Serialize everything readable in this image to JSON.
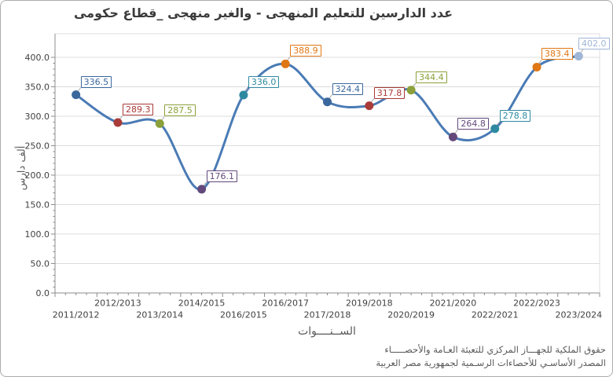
{
  "title": "عدد الدارسين للتعليم المنهجى - والغير منهجى _قطاع حكومى",
  "y_axis_title": "ألف دارس",
  "x_axis_title": "الســنــــوات",
  "footer": {
    "line1": "حقوق الملكية للجهـــاز المركزي للتعبئة العـامة والأحصـــــاء",
    "line2": "المصدر الأساسـي للأحصاءات الرسـمية لجمهورية مصر العربية"
  },
  "chart_data": {
    "type": "line",
    "smooth": true,
    "title": "عدد الدارسين للتعليم المنهجى - والغير منهجى _قطاع حكومى",
    "xlabel": "الســنــــوات",
    "ylabel": "ألف دارس",
    "categories": [
      "2011/2012",
      "2012/2013",
      "2013/2014",
      "2014/2015",
      "2016/2015",
      "2016/2017",
      "2017/2018",
      "2019/2018",
      "2020/2019",
      "2021/2020",
      "2022/2021",
      "2022/2023",
      "2023/2024"
    ],
    "values": [
      336.5,
      289.3,
      287.5,
      176.1,
      336.0,
      388.9,
      324.4,
      317.8,
      344.4,
      264.8,
      278.8,
      383.4,
      402.0
    ],
    "point_colors": [
      "#3A679C",
      "#A93B38",
      "#8BA03A",
      "#63497B",
      "#2E89A0",
      "#E07715",
      "#3A679C",
      "#A93B38",
      "#8BA03A",
      "#63497B",
      "#2E89A0",
      "#E07715",
      "#9FB6D6"
    ],
    "line_color": "#4A7BB5",
    "grid_color": "#DCDCDC",
    "axis_color": "#8C8C8C",
    "tick_label_color": "#3F3F3F",
    "ylim": [
      0,
      440
    ],
    "y_ticks": [
      "0.0",
      "50.0",
      "100.0",
      "150.0",
      "200.0",
      "250.0",
      "300.0",
      "350.0",
      "400.0"
    ],
    "y_tick_step": 50,
    "grid": "horizontal",
    "legend": "none",
    "data_labels": "value, boxed, colored per point"
  }
}
